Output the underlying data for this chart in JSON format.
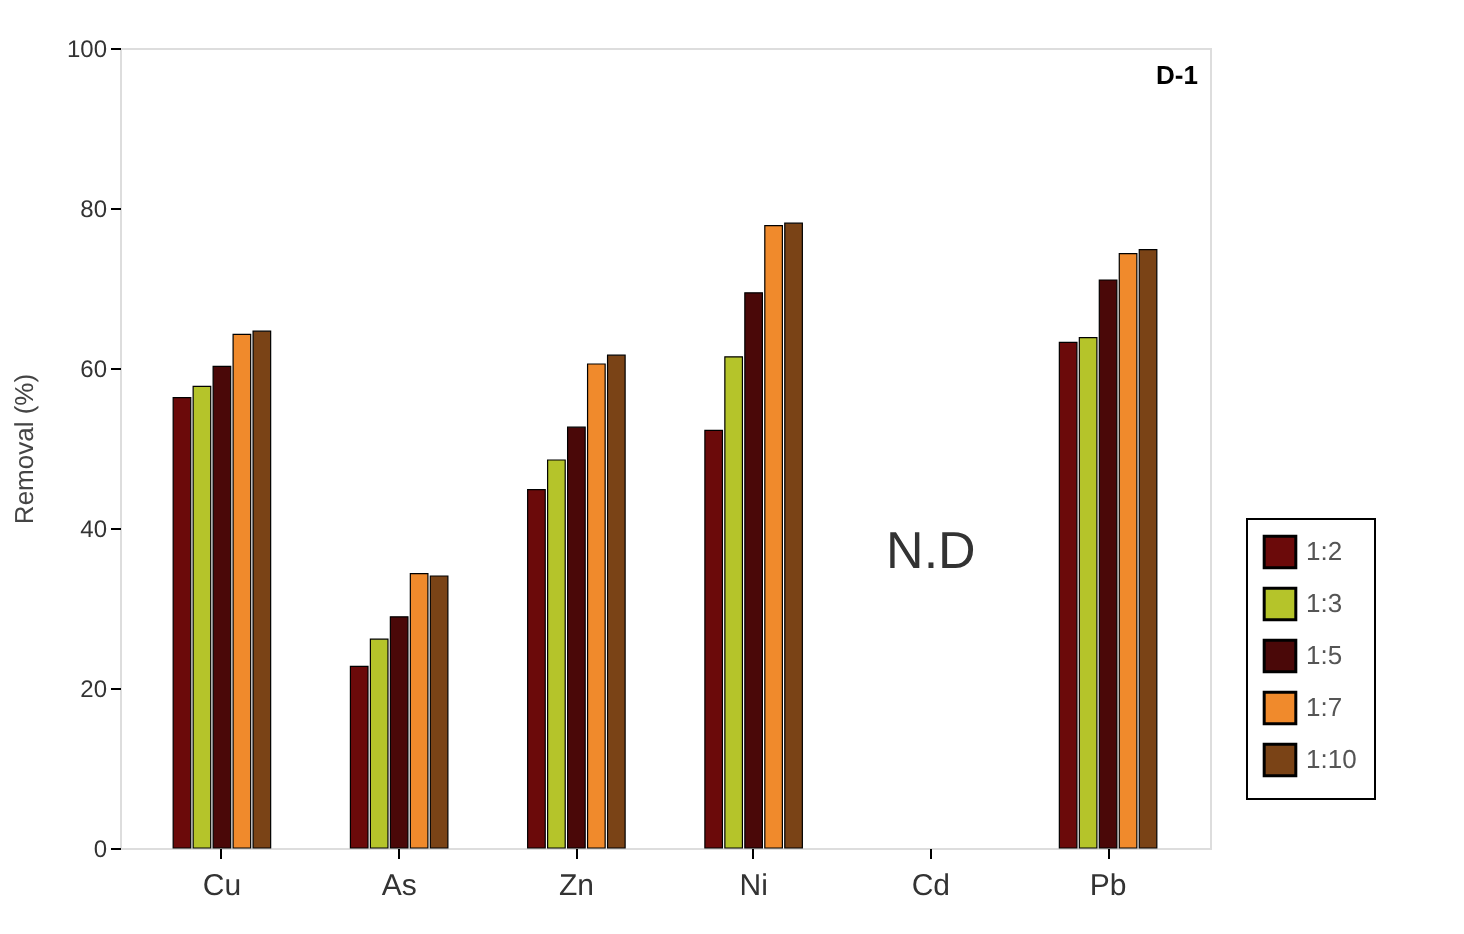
{
  "chart_data": {
    "type": "bar",
    "ylabel": "Removal (%)",
    "categories": [
      "Cu",
      "As",
      "Zn",
      "Ni",
      "Cd",
      "Pb"
    ],
    "series": [
      {
        "name": "1:2",
        "color": "#6b0a0a",
        "values": [
          56.3,
          22.7,
          44.8,
          52.2,
          null,
          63.2
        ]
      },
      {
        "name": "1:3",
        "color": "#b5c42a",
        "values": [
          57.7,
          26.1,
          48.5,
          61.4,
          null,
          63.8
        ]
      },
      {
        "name": "1:5",
        "color": "#4a0808",
        "values": [
          60.2,
          28.9,
          52.6,
          69.4,
          null,
          71.0
        ]
      },
      {
        "name": "1:7",
        "color": "#f08a2c",
        "values": [
          64.2,
          34.3,
          60.5,
          77.8,
          null,
          74.3
        ]
      },
      {
        "name": "1:10",
        "color": "#7a4316",
        "values": [
          64.6,
          34.0,
          61.6,
          78.1,
          null,
          74.8
        ]
      }
    ],
    "ylim": [
      0,
      100
    ],
    "yticks": [
      0,
      20,
      40,
      60,
      80,
      100
    ],
    "grid": false,
    "legend": "right",
    "annotations": [
      "D-1",
      "N.D"
    ]
  }
}
